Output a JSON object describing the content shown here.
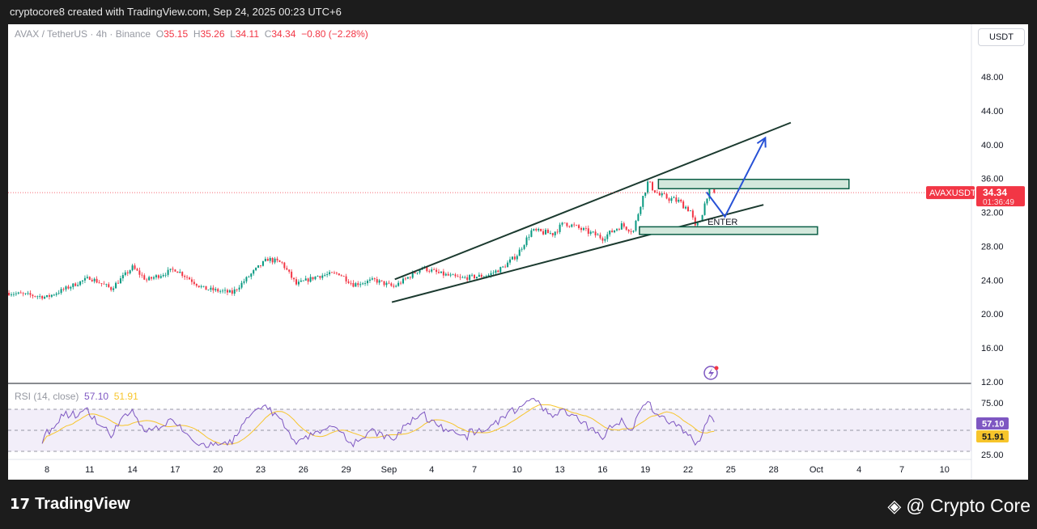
{
  "header": {
    "created_text": "cryptocore8 created with TradingView.com, Sep 24, 2025 00:23 UTC+6"
  },
  "legend": {
    "symbol": "AVAX / TetherUS · 4h · Binance",
    "o_label": "O",
    "open": "35.15",
    "h_label": "H",
    "high": "35.26",
    "l_label": "L",
    "low": "34.11",
    "c_label": "C",
    "close": "34.34",
    "change": "−0.80 (−2.28%)"
  },
  "currency_button": "USDT",
  "price_tag": {
    "symbol": "AVAXUSDT",
    "price": "34.34",
    "countdown": "01:36:49"
  },
  "rsi": {
    "label": "RSI (14, close)",
    "value": "57.10",
    "ma_value": "51.91",
    "levels": [
      "75.00",
      "25.00"
    ]
  },
  "footer": {
    "logo_text": "TradingView",
    "brand": "@ Crypto Core"
  },
  "colors": {
    "up": "#089981",
    "down": "#f23645",
    "rsi": "#7e57c2",
    "rsi_ma": "#f7c52b",
    "channel": "#1b3a2f",
    "zone_fill": "#d3e8dc",
    "zone_border": "#0b5e46",
    "arrow": "#2751d6"
  },
  "chart_data": {
    "type": "candlestick",
    "timeframe": "4h",
    "yaxis": {
      "ticks": [
        "48.00",
        "44.00",
        "40.00",
        "36.00",
        "32.00",
        "28.00",
        "24.00",
        "20.00",
        "16.00",
        "12.00"
      ],
      "range": [
        12,
        50
      ]
    },
    "xaxis": {
      "ticks": [
        {
          "label": "8",
          "date": "2025-08-08"
        },
        {
          "label": "11",
          "date": "2025-08-11"
        },
        {
          "label": "14",
          "date": "2025-08-14"
        },
        {
          "label": "17",
          "date": "2025-08-17"
        },
        {
          "label": "20",
          "date": "2025-08-20"
        },
        {
          "label": "23",
          "date": "2025-08-23"
        },
        {
          "label": "26",
          "date": "2025-08-26"
        },
        {
          "label": "29",
          "date": "2025-08-29"
        },
        {
          "label": "Sep",
          "date": "2025-09-01"
        },
        {
          "label": "4",
          "date": "2025-09-04"
        },
        {
          "label": "7",
          "date": "2025-09-07"
        },
        {
          "label": "10",
          "date": "2025-09-10"
        },
        {
          "label": "13",
          "date": "2025-09-13"
        },
        {
          "label": "16",
          "date": "2025-09-16"
        },
        {
          "label": "19",
          "date": "2025-09-19"
        },
        {
          "label": "22",
          "date": "2025-09-22"
        },
        {
          "label": "25",
          "date": "2025-09-25"
        },
        {
          "label": "28",
          "date": "2025-09-28"
        },
        {
          "label": "Oct",
          "date": "2025-10-01"
        },
        {
          "label": "4",
          "date": "2025-10-04"
        },
        {
          "label": "7",
          "date": "2025-10-07"
        },
        {
          "label": "10",
          "date": "2025-10-10"
        }
      ]
    },
    "close_path": [
      [
        "2025-08-05T08:00",
        22.5
      ],
      [
        "2025-08-08T00:00",
        22.0
      ],
      [
        "2025-08-11T00:00",
        24.3
      ],
      [
        "2025-08-12T12:00",
        23.0
      ],
      [
        "2025-08-14T00:00",
        25.5
      ],
      [
        "2025-08-15T00:00",
        24.0
      ],
      [
        "2025-08-17T00:00",
        25.3
      ],
      [
        "2025-08-19T00:00",
        23.0
      ],
      [
        "2025-08-21T00:00",
        22.5
      ],
      [
        "2025-08-22T12:00",
        25.0
      ],
      [
        "2025-08-23T12:00",
        26.5
      ],
      [
        "2025-08-24T12:00",
        26.0
      ],
      [
        "2025-08-25T12:00",
        23.5
      ],
      [
        "2025-08-27T00:00",
        24.5
      ],
      [
        "2025-08-28T12:00",
        24.8
      ],
      [
        "2025-08-29T12:00",
        23.5
      ],
      [
        "2025-08-31T00:00",
        24.0
      ],
      [
        "2025-09-01T08:00",
        23.2
      ],
      [
        "2025-09-02T12:00",
        24.5
      ],
      [
        "2025-09-03T08:00",
        25.5
      ],
      [
        "2025-09-04T12:00",
        24.8
      ],
      [
        "2025-09-06T00:00",
        24.2
      ],
      [
        "2025-09-08T00:00",
        24.6
      ],
      [
        "2025-09-09T00:00",
        25.5
      ],
      [
        "2025-09-10T00:00",
        27.0
      ],
      [
        "2025-09-11T00:00",
        29.8
      ],
      [
        "2025-09-12T12:00",
        29.5
      ],
      [
        "2025-09-13T08:00",
        30.8
      ],
      [
        "2025-09-14T12:00",
        30.0
      ],
      [
        "2025-09-16T00:00",
        29.0
      ],
      [
        "2025-09-17T08:00",
        30.5
      ],
      [
        "2025-09-18T04:00",
        29.8
      ],
      [
        "2025-09-18T16:00",
        33.0
      ],
      [
        "2025-09-19T04:00",
        35.5
      ],
      [
        "2025-09-20T00:00",
        34.0
      ],
      [
        "2025-09-21T08:00",
        33.3
      ],
      [
        "2025-09-22T04:00",
        32.2
      ],
      [
        "2025-09-22T12:00",
        30.2
      ],
      [
        "2025-09-22T20:00",
        31.0
      ],
      [
        "2025-09-23T12:00",
        35.0
      ],
      [
        "2025-09-23T20:00",
        34.34
      ]
    ],
    "last_price": 34.34,
    "rsi_levels": [
      75,
      50,
      25
    ],
    "drawings": {
      "channel_upper": [
        [
          "2025-09-01T10:00",
          24.1
        ],
        [
          "2025-09-29T05:00",
          42.6
        ]
      ],
      "channel_lower": [
        [
          "2025-09-01T05:00",
          21.4
        ],
        [
          "2025-09-27T07:00",
          32.9
        ]
      ],
      "zones": [
        {
          "from": "2025-09-19T22:00",
          "to": "2025-10-03T07:00",
          "top": 35.9,
          "bottom": 34.8
        },
        {
          "from": "2025-09-18T14:00",
          "to": "2025-10-01T02:00",
          "top": 30.3,
          "bottom": 29.4
        }
      ],
      "projection": [
        [
          "2025-09-23T07:00",
          34.4
        ],
        [
          "2025-09-24T14:00",
          31.5
        ],
        [
          "2025-09-27T10:00",
          40.8
        ]
      ],
      "label": {
        "text": "ENTER",
        "date": "2025-09-24T08:00",
        "price": 31.0
      }
    }
  }
}
